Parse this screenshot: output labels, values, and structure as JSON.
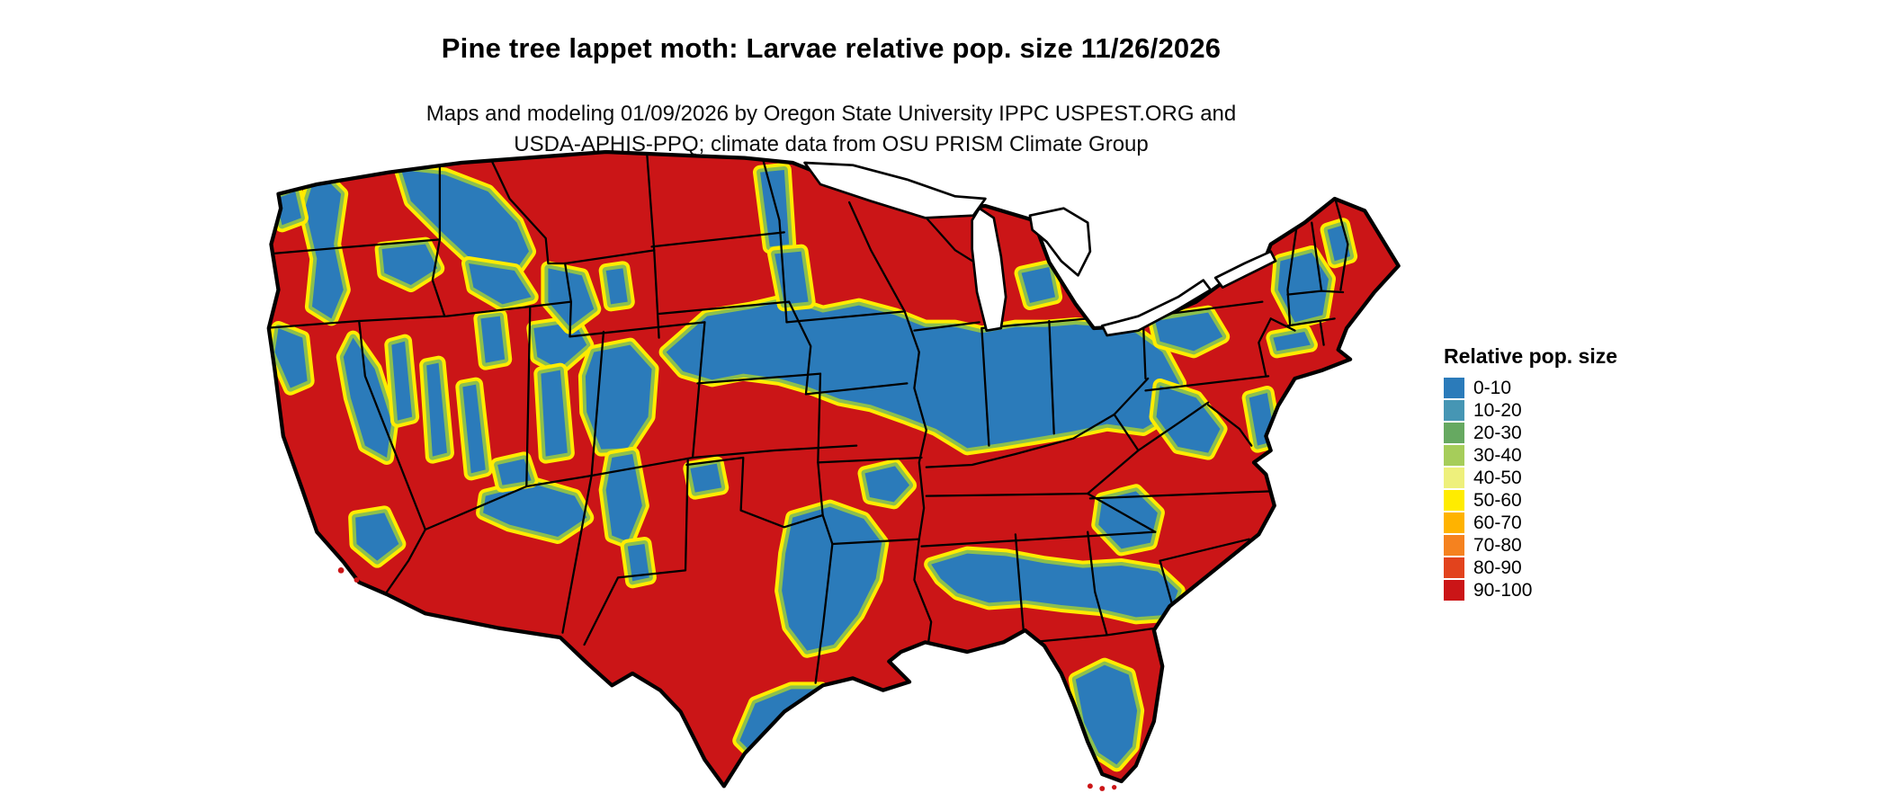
{
  "title": "Pine tree lappet moth: Larvae relative pop. size 11/26/2026",
  "subtitle": {
    "line1": "Maps and modeling 01/09/2026 by Oregon State University IPPC USPEST.ORG and",
    "line2": "USDA-APHIS-PPQ; climate data from OSU PRISM Climate Group"
  },
  "legend": {
    "title": "Relative pop. size",
    "entries": [
      {
        "label": "0-10",
        "color": "#2b7bba"
      },
      {
        "label": "10-20",
        "color": "#4696b4"
      },
      {
        "label": "20-30",
        "color": "#66a961"
      },
      {
        "label": "30-40",
        "color": "#a6cd5a"
      },
      {
        "label": "40-50",
        "color": "#eef07c"
      },
      {
        "label": "50-60",
        "color": "#ffec00"
      },
      {
        "label": "60-70",
        "color": "#ffb300"
      },
      {
        "label": "70-80",
        "color": "#f5821f"
      },
      {
        "label": "80-90",
        "color": "#e2431d"
      },
      {
        "label": "90-100",
        "color": "#cb1517"
      }
    ]
  },
  "map": {
    "region_label": "Continental United States",
    "dominant_color": "#cb1517",
    "low_value_color": "#2b7bba",
    "fringe_colors": [
      "#ffec00",
      "#8cbf4e"
    ],
    "border_color": "#000000",
    "water_color": "#ffffff"
  }
}
